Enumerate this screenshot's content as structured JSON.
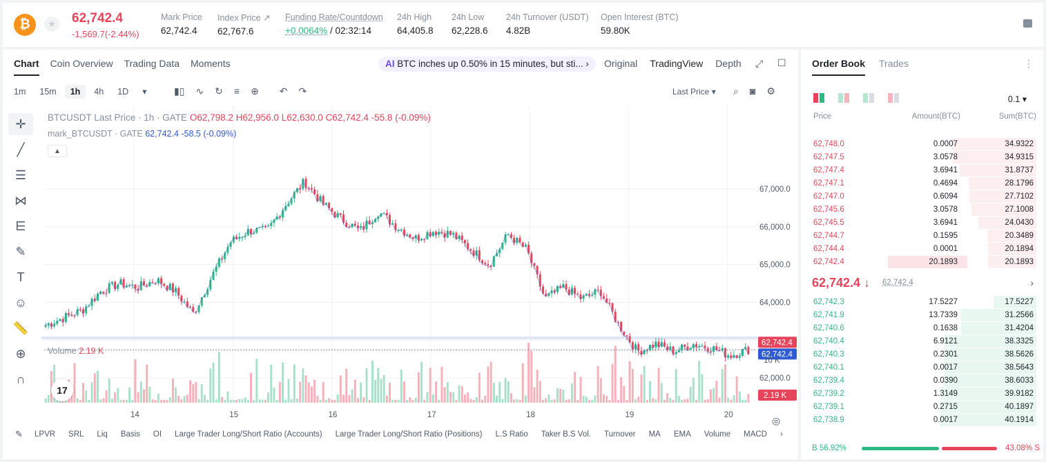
{
  "header": {
    "coin_symbol": "₿",
    "last_price": "62,742.4",
    "change": "-1,569.7(-2.44%)",
    "stats": [
      {
        "label": "Mark Price",
        "value": "62,742.4"
      },
      {
        "label": "Index Price ↗",
        "value": "62,767.6"
      },
      {
        "label": "Funding Rate/Countdown",
        "value": "+0.0064%",
        "value2": " / 02:32:14"
      },
      {
        "label": "24h High",
        "value": "64,405.8"
      },
      {
        "label": "24h Low",
        "value": "62,228.6"
      },
      {
        "label": "24h Turnover (USDT)",
        "value": "4.82B"
      },
      {
        "label": "Open Interest (BTC)",
        "value": "59.80K"
      }
    ]
  },
  "chart_tabs": [
    "Chart",
    "Coin Overview",
    "Trading Data",
    "Moments"
  ],
  "news": {
    "icon": "AI",
    "text": "BTC inches up 0.50% in 15 minutes, but sti..."
  },
  "view_modes": [
    "Original",
    "TradingView",
    "Depth"
  ],
  "intervals": [
    "1m",
    "15m",
    "1h",
    "4h",
    "1D"
  ],
  "price_type": "Last Price",
  "legend": {
    "title": "BTCUSDT Last Price · 1h · GATE",
    "o": "O62,798.2",
    "h": "H62,956.0",
    "l": "L62,630.0",
    "c": "C62,742.4",
    "chg": "-55.8 (-0.09%)",
    "mark_label": "mark_BTCUSDT · GATE",
    "mark_val": "62,742.4",
    "mark_chg": "-58.5 (-0.09%)"
  },
  "volume_legend": {
    "label": "Volume",
    "value": "2.19 K"
  },
  "indicators": [
    "LPVR",
    "SRL",
    "Liq",
    "Basis",
    "OI",
    "Large Trader Long/Short Ratio (Accounts)",
    "Large Trader Long/Short Ratio (Positions)",
    "L.S Ratio",
    "Taker B.S Vol.",
    "Turnover",
    "MA",
    "EMA",
    "Volume",
    "MACD"
  ],
  "colors": {
    "up": "#2db884",
    "down": "#e5445a",
    "mark": "#2f5bd3"
  },
  "chart_data": {
    "type": "candlestick",
    "price_axis": {
      "ticks": [
        67000,
        66000,
        65000,
        64000,
        63000,
        62000
      ],
      "tick_labels": [
        "67,000.0",
        "66,000.0",
        "65,000.0",
        "64,000.0",
        "",
        "62,000.0"
      ]
    },
    "x_ticks": [
      "14",
      "15",
      "16",
      "17",
      "18",
      "19",
      "20"
    ],
    "current_price": "62,742.4",
    "mark_price": "62,742.4",
    "volume_axis": {
      "tick_label": "10 K",
      "ticks": [
        10000
      ]
    },
    "current_volume": "2.19 K",
    "close_path": [
      63400,
      63600,
      63800,
      64300,
      64500,
      64400,
      64600,
      64300,
      63700,
      64700,
      65600,
      65900,
      65900,
      66600,
      67200,
      66600,
      66200,
      65900,
      66400,
      66000,
      65700,
      65900,
      65800,
      65400,
      65000,
      65800,
      65400,
      64100,
      64400,
      64100,
      64300,
      63400,
      62700,
      62900,
      62700,
      62900,
      62800,
      62600,
      62750
    ]
  },
  "orderbook": {
    "tabs": [
      "Order Book",
      "Trades"
    ],
    "precision": "0.1 ▾",
    "headers": [
      "Price",
      "Amount(BTC)",
      "Sum(BTC)"
    ],
    "asks": [
      {
        "price": "62,748.0",
        "amount": "0.0007",
        "sum": "34.9322",
        "depth": 0.87
      },
      {
        "price": "62,747.5",
        "amount": "3.0578",
        "sum": "34.9315",
        "depth": 0.87
      },
      {
        "price": "62,747.4",
        "amount": "3.6941",
        "sum": "31.8737",
        "depth": 0.79
      },
      {
        "price": "62,747.1",
        "amount": "0.4694",
        "sum": "28.1796",
        "depth": 0.7
      },
      {
        "price": "62,747.0",
        "amount": "0.6094",
        "sum": "27.7102",
        "depth": 0.69
      },
      {
        "price": "62,745.6",
        "amount": "3.0578",
        "sum": "27.1008",
        "depth": 0.67
      },
      {
        "price": "62,745.5",
        "amount": "3.6941",
        "sum": "24.0430",
        "depth": 0.6
      },
      {
        "price": "62,744.7",
        "amount": "0.1595",
        "sum": "20.3489",
        "depth": 0.51
      },
      {
        "price": "62,744.4",
        "amount": "0.0001",
        "sum": "20.1894",
        "depth": 0.5
      },
      {
        "price": "62,742.4",
        "amount": "20.1893",
        "sum": "20.1893",
        "depth": 0.5,
        "amount_depth": 0.5
      }
    ],
    "mid_price": "62,742.4 ↓",
    "mid_mark": "62,742.4",
    "bids": [
      {
        "price": "62,742.3",
        "amount": "17.5227",
        "sum": "17.5227",
        "depth": 0.44
      },
      {
        "price": "62,741.9",
        "amount": "13.7339",
        "sum": "31.2566",
        "depth": 0.78
      },
      {
        "price": "62,740.6",
        "amount": "0.1638",
        "sum": "31.4204",
        "depth": 0.78
      },
      {
        "price": "62,740.4",
        "amount": "6.9121",
        "sum": "38.3325",
        "depth": 0.95
      },
      {
        "price": "62,740.3",
        "amount": "0.2301",
        "sum": "38.5626",
        "depth": 0.96
      },
      {
        "price": "62,740.1",
        "amount": "0.0017",
        "sum": "38.5643",
        "depth": 0.96
      },
      {
        "price": "62,739.4",
        "amount": "0.0390",
        "sum": "38.6033",
        "depth": 0.96
      },
      {
        "price": "62,739.2",
        "amount": "1.3149",
        "sum": "39.9182",
        "depth": 0.99
      },
      {
        "price": "62,739.1",
        "amount": "0.2715",
        "sum": "40.1897",
        "depth": 1.0
      },
      {
        "price": "62,738.9",
        "amount": "0.0017",
        "sum": "40.1914",
        "depth": 1.0
      }
    ],
    "ratio": {
      "buy": "B 56.92%",
      "sell": "43.08% S",
      "buy_frac": 0.5692
    }
  }
}
